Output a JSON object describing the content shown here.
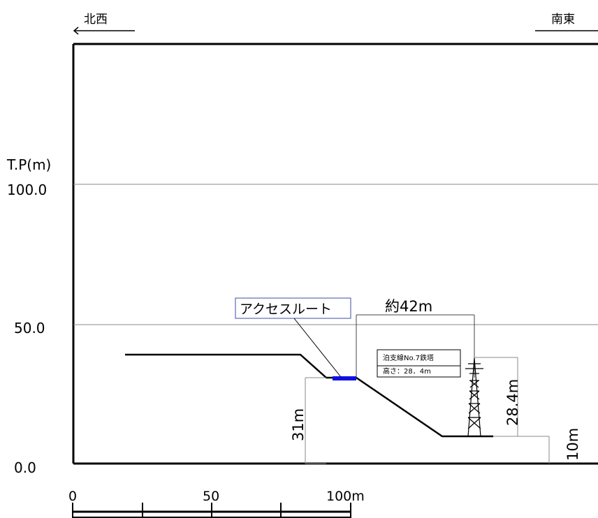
{
  "directions": {
    "left": "北西",
    "right": "南東"
  },
  "axis": {
    "unit_label": "T.P(m)",
    "ticks": [
      "100.0",
      "50.0",
      "0.0"
    ]
  },
  "dimensions": {
    "distance": "約42m",
    "height_31": "31m",
    "height_28": "28.4m",
    "height_10": "10m"
  },
  "callout": {
    "label": "アクセスルート"
  },
  "tower": {
    "line1": "泊支線No.7鉄塔",
    "line2": "高さ：28．4m"
  },
  "scale": {
    "labels": [
      "0",
      "50",
      "100m"
    ]
  },
  "colors": {
    "access_route": "#1010e0",
    "callout_border": "#5a6ab8"
  }
}
